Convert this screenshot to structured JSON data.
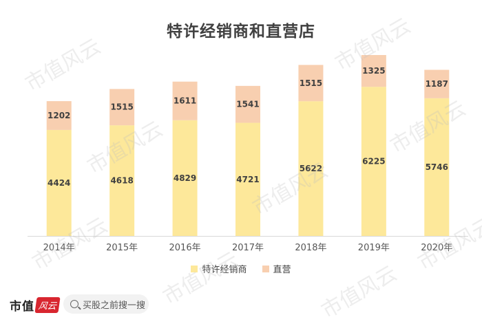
{
  "chart_data": {
    "type": "bar",
    "stacked": true,
    "title": "特许经销商和直营店",
    "categories": [
      "2014年",
      "2015年",
      "2016年",
      "2017年",
      "2018年",
      "2019年",
      "2020年"
    ],
    "series": [
      {
        "name": "特许经销商",
        "values": [
          4424,
          4618,
          4829,
          4721,
          5622,
          6225,
          5746
        ],
        "color": "#fde89a"
      },
      {
        "name": "直营",
        "values": [
          1202,
          1515,
          1611,
          1541,
          1515,
          1325,
          1187
        ],
        "color": "#f8cfb0"
      }
    ],
    "ylim": [
      0,
      7550
    ],
    "grid": false,
    "legend_position": "bottom"
  },
  "footer": {
    "logo_text": "市值",
    "logo_stamp": "风云",
    "search_text": "买股之前搜一搜",
    "search_icon": "search-icon"
  },
  "watermark": "市值风云"
}
